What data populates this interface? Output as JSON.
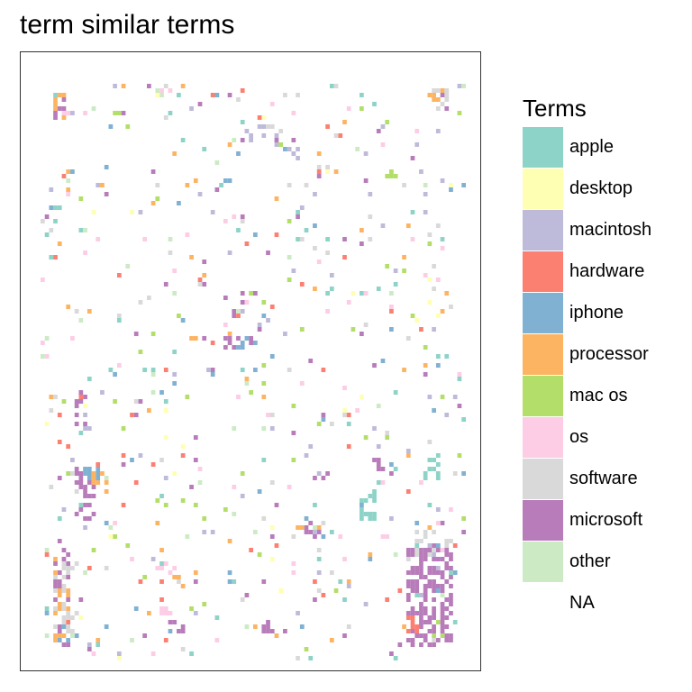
{
  "chart_data": {
    "type": "heatmap",
    "title": "term similar terms",
    "xlabel": "",
    "ylabel": "",
    "grid": false,
    "legend": {
      "title": "Terms",
      "placement": "right",
      "entries": [
        {
          "label": "apple",
          "color": "#8DD3C7"
        },
        {
          "label": "desktop",
          "color": "#FFFFB3"
        },
        {
          "label": "macintosh",
          "color": "#BEBADA"
        },
        {
          "label": "hardware",
          "color": "#FB8072"
        },
        {
          "label": "iphone",
          "color": "#80B1D3"
        },
        {
          "label": "processor",
          "color": "#FDB462"
        },
        {
          "label": "mac os",
          "color": "#B3DE69"
        },
        {
          "label": "os",
          "color": "#FCCDE5"
        },
        {
          "label": "software",
          "color": "#D9D9D9"
        },
        {
          "label": "microsoft",
          "color": "#B87CBA"
        },
        {
          "label": "other",
          "color": "#CCEBC5"
        },
        {
          "label": "NA",
          "color": "#FFFFFF"
        }
      ]
    },
    "grid_size": {
      "cols": 100,
      "rows": 128
    },
    "clusters": [
      {
        "term": "microsoft",
        "col": 3,
        "row": 2,
        "w": 3,
        "h": 6,
        "density": 0.45
      },
      {
        "term": "processor",
        "col": 3,
        "row": 2,
        "w": 3,
        "h": 6,
        "density": 0.2
      },
      {
        "term": "processor",
        "col": 91,
        "row": 1,
        "w": 4,
        "h": 3,
        "density": 0.4
      },
      {
        "term": "software",
        "col": 92,
        "row": 1,
        "w": 4,
        "h": 5,
        "density": 0.35
      },
      {
        "term": "microsoft",
        "col": 93,
        "row": 2,
        "w": 3,
        "h": 4,
        "density": 0.3
      },
      {
        "term": "apple",
        "col": 3,
        "row": 27,
        "w": 2,
        "h": 5,
        "density": 0.45
      },
      {
        "term": "microsoft",
        "col": 8,
        "row": 68,
        "w": 3,
        "h": 8,
        "density": 0.45
      },
      {
        "term": "microsoft",
        "col": 8,
        "row": 86,
        "w": 4,
        "h": 6,
        "density": 0.3
      },
      {
        "term": "microsoft",
        "col": 8,
        "row": 85,
        "w": 5,
        "h": 12,
        "density": 0.35
      },
      {
        "term": "processor",
        "col": 12,
        "row": 86,
        "w": 4,
        "h": 6,
        "density": 0.3
      },
      {
        "term": "iphone",
        "col": 10,
        "row": 85,
        "w": 5,
        "h": 4,
        "density": 0.25
      },
      {
        "term": "microsoft",
        "col": 3,
        "row": 104,
        "w": 4,
        "h": 21,
        "density": 0.35
      },
      {
        "term": "processor",
        "col": 3,
        "row": 112,
        "w": 5,
        "h": 12,
        "density": 0.25
      },
      {
        "term": "software",
        "col": 3,
        "row": 106,
        "w": 6,
        "h": 18,
        "density": 0.2
      },
      {
        "term": "iphone",
        "col": 3,
        "row": 120,
        "w": 6,
        "h": 4,
        "density": 0.25
      },
      {
        "term": "microsoft",
        "col": 86,
        "row": 103,
        "w": 11,
        "h": 22,
        "density": 0.55
      },
      {
        "term": "software",
        "col": 88,
        "row": 99,
        "w": 9,
        "h": 6,
        "density": 0.3
      },
      {
        "term": "hardware",
        "col": 86,
        "row": 117,
        "w": 4,
        "h": 5,
        "density": 0.3
      },
      {
        "term": "mac os",
        "col": 92,
        "row": 118,
        "w": 4,
        "h": 6,
        "density": 0.15
      },
      {
        "term": "apple",
        "col": 75,
        "row": 90,
        "w": 4,
        "h": 7,
        "density": 0.55
      },
      {
        "term": "apple",
        "col": 90,
        "row": 82,
        "w": 4,
        "h": 6,
        "density": 0.45
      },
      {
        "term": "microsoft",
        "col": 43,
        "row": 56,
        "w": 8,
        "h": 3,
        "density": 0.4
      },
      {
        "term": "iphone",
        "col": 45,
        "row": 57,
        "w": 6,
        "h": 2,
        "density": 0.3
      },
      {
        "term": "microsoft",
        "col": 43,
        "row": 46,
        "w": 5,
        "h": 6,
        "density": 0.3
      },
      {
        "term": "microsoft",
        "col": 30,
        "row": 119,
        "w": 4,
        "h": 3,
        "density": 0.4
      },
      {
        "term": "os",
        "col": 27,
        "row": 105,
        "w": 5,
        "h": 4,
        "density": 0.35
      },
      {
        "term": "processor",
        "col": 31,
        "row": 107,
        "w": 3,
        "h": 5,
        "density": 0.3
      },
      {
        "term": "os",
        "col": 28,
        "row": 116,
        "w": 3,
        "h": 2,
        "density": 0.5
      },
      {
        "term": "microsoft",
        "col": 52,
        "row": 119,
        "w": 6,
        "h": 3,
        "density": 0.3
      },
      {
        "term": "microsoft",
        "col": 61,
        "row": 97,
        "w": 5,
        "h": 4,
        "density": 0.4
      },
      {
        "term": "processor",
        "col": 60,
        "row": 98,
        "w": 3,
        "h": 2,
        "density": 0.4
      },
      {
        "term": "microsoft",
        "col": 77,
        "row": 83,
        "w": 5,
        "h": 3,
        "density": 0.35
      },
      {
        "term": "macintosh",
        "col": 48,
        "row": 9,
        "w": 8,
        "h": 5,
        "density": 0.25
      },
      {
        "term": "macintosh",
        "col": 57,
        "row": 12,
        "w": 4,
        "h": 5,
        "density": 0.25
      },
      {
        "term": "mac os",
        "col": 81,
        "row": 19,
        "w": 3,
        "h": 2,
        "density": 0.5
      },
      {
        "term": "apple",
        "col": 67,
        "row": 45,
        "w": 2,
        "h": 3,
        "density": 0.5
      },
      {
        "term": "macintosh",
        "col": 9,
        "row": 73,
        "w": 3,
        "h": 4,
        "density": 0.3
      }
    ],
    "scatter": [
      {
        "term": "microsoft",
        "count": 70
      },
      {
        "term": "apple",
        "count": 70
      },
      {
        "term": "macintosh",
        "count": 70
      },
      {
        "term": "software",
        "count": 70
      },
      {
        "term": "os",
        "count": 60
      },
      {
        "term": "processor",
        "count": 55
      },
      {
        "term": "mac os",
        "count": 55
      },
      {
        "term": "hardware",
        "count": 50
      },
      {
        "term": "iphone",
        "count": 50
      },
      {
        "term": "other",
        "count": 40
      },
      {
        "term": "desktop",
        "count": 25
      }
    ],
    "seed": 20240
  }
}
